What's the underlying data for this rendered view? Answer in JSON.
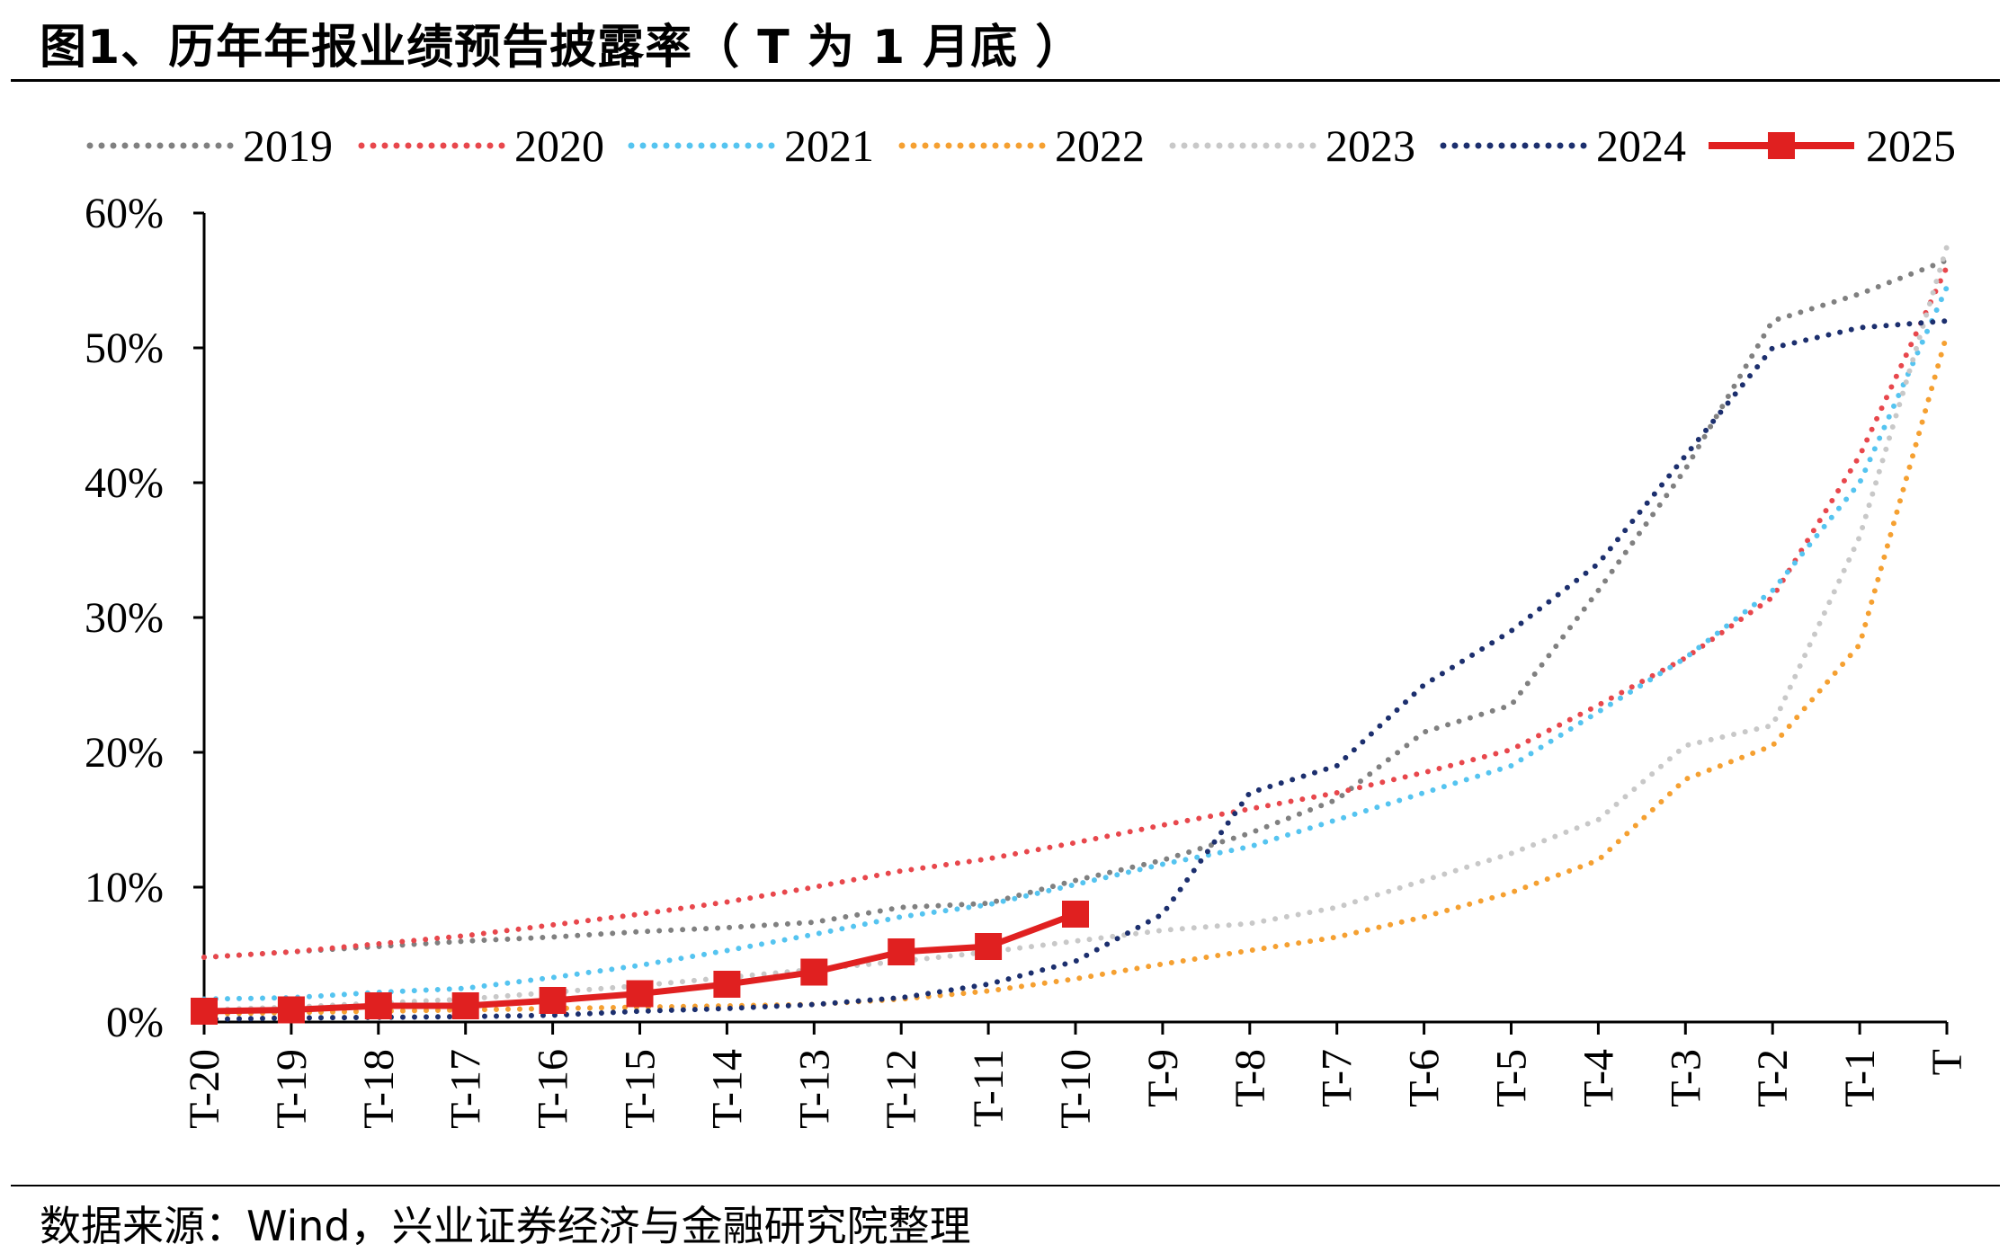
{
  "title": "图1、历年年报业绩预告披露率（ T 为 1 月底 ）",
  "source": "数据来源：Wind，兴业证券经济与金融研究院整理",
  "chart_data": {
    "type": "line",
    "x": [
      "T-20",
      "T-19",
      "T-18",
      "T-17",
      "T-16",
      "T-15",
      "T-14",
      "T-13",
      "T-12",
      "T-11",
      "T-10",
      "T-9",
      "T-8",
      "T-7",
      "T-6",
      "T-5",
      "T-4",
      "T-3",
      "T-2",
      "T-1",
      "T"
    ],
    "ylim": [
      0,
      60
    ],
    "yticks": [
      0,
      10,
      20,
      30,
      40,
      50,
      60
    ],
    "ytick_labels": [
      "0%",
      "10%",
      "20%",
      "30%",
      "40%",
      "50%",
      "60%"
    ],
    "legend_position": "top",
    "series": [
      {
        "name": "2019",
        "color": "#808080",
        "style": "dotted",
        "values": [
          4.8,
          5.2,
          5.6,
          6.0,
          6.3,
          6.7,
          7.0,
          7.4,
          8.5,
          8.8,
          10.5,
          12.0,
          14.0,
          16.5,
          21.5,
          23.5,
          32.0,
          41.0,
          52.0,
          54.0,
          56.5
        ]
      },
      {
        "name": "2020",
        "color": "#E8474C",
        "style": "dotted",
        "values": [
          4.8,
          5.2,
          5.8,
          6.4,
          7.2,
          8.0,
          8.9,
          10.0,
          11.2,
          12.1,
          13.3,
          14.6,
          15.8,
          17.0,
          18.5,
          20.2,
          23.5,
          27.0,
          31.5,
          42.0,
          56.0
        ]
      },
      {
        "name": "2021",
        "color": "#55C4F0",
        "style": "dotted",
        "values": [
          1.7,
          1.8,
          2.2,
          2.5,
          3.3,
          4.2,
          5.3,
          6.5,
          7.8,
          8.7,
          10.2,
          11.7,
          13.0,
          15.0,
          17.0,
          19.0,
          23.0,
          27.0,
          32.0,
          40.0,
          54.5
        ]
      },
      {
        "name": "2022",
        "color": "#F5A031",
        "style": "dotted",
        "values": [
          0.6,
          0.7,
          0.8,
          0.9,
          1.0,
          1.1,
          1.2,
          1.3,
          1.7,
          2.3,
          3.2,
          4.3,
          5.3,
          6.3,
          7.8,
          9.6,
          12.0,
          18.0,
          20.5,
          28.0,
          51.0
        ]
      },
      {
        "name": "2023",
        "color": "#C8C8C8",
        "style": "dotted",
        "values": [
          0.9,
          1.1,
          1.4,
          1.7,
          2.2,
          2.7,
          3.3,
          3.9,
          4.5,
          5.2,
          6.0,
          6.8,
          7.3,
          8.5,
          10.5,
          12.5,
          15.0,
          20.5,
          22.0,
          36.0,
          57.5
        ]
      },
      {
        "name": "2024",
        "color": "#1C2F6E",
        "style": "dotted",
        "values": [
          0.2,
          0.3,
          0.35,
          0.4,
          0.5,
          0.8,
          1.0,
          1.3,
          1.8,
          2.8,
          4.5,
          8.0,
          17.0,
          19.0,
          25.0,
          29.0,
          34.0,
          42.0,
          50.0,
          51.5,
          52.0
        ]
      },
      {
        "name": "2025",
        "color": "#E02020",
        "style": "solid-marker",
        "values": [
          0.8,
          0.9,
          1.2,
          1.2,
          1.6,
          2.1,
          2.8,
          3.7,
          5.2,
          5.6,
          8.0,
          null,
          null,
          null,
          null,
          null,
          null,
          null,
          null,
          null,
          null
        ]
      }
    ]
  }
}
